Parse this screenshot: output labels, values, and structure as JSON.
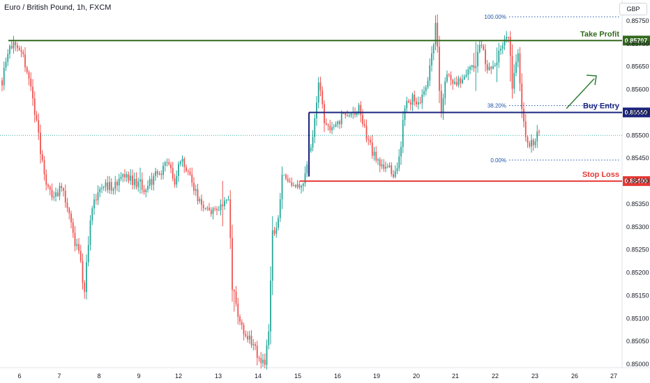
{
  "header": {
    "title": "Euro / British Pound, 1h, FXCM",
    "currency": "GBP"
  },
  "chart_data": {
    "type": "candlestick",
    "title": "Euro / British Pound, 1h, FXCM",
    "ylim": [
      0.84985,
      0.8579
    ],
    "grid": false,
    "y_ticks": [
      "0.85750",
      "0.85700",
      "0.85650",
      "0.85600",
      "0.85550",
      "0.85500",
      "0.85450",
      "0.85400",
      "0.85350",
      "0.85300",
      "0.85250",
      "0.85200",
      "0.85150",
      "0.85100",
      "0.85050",
      "0.85000"
    ],
    "x_ticks": [
      "6",
      "7",
      "8",
      "9",
      "12",
      "13",
      "14",
      "15",
      "16",
      "19",
      "20",
      "21",
      "22",
      "23",
      "26",
      "27"
    ],
    "current_price": 0.855,
    "levels": {
      "take_profit": {
        "label": "Take Profit",
        "price": 0.85707,
        "tag": "0.85707",
        "color": "#33691e"
      },
      "buy_entry": {
        "label": "Buy Entry",
        "price": 0.8555,
        "tag": "0.85550",
        "color": "#1a237e"
      },
      "stop_loss": {
        "label": "Stop Loss",
        "price": 0.854,
        "tag": "0.85400",
        "color": "#e53935"
      }
    },
    "fibonacci": [
      {
        "label": "100.00%",
        "price": 0.85759
      },
      {
        "label": "38.20%",
        "price": 0.85565
      },
      {
        "label": "0.00%",
        "price": 0.85446
      }
    ],
    "colors": {
      "up": "#26a69a",
      "down": "#ef5350",
      "fib": "#1e53a8",
      "arrow": "#2e7d32"
    },
    "price_path": [
      [
        0,
        0.8559
      ],
      [
        7,
        0.8566
      ],
      [
        15,
        0.85705
      ],
      [
        25,
        0.8568
      ],
      [
        35,
        0.85665
      ],
      [
        45,
        0.856
      ],
      [
        55,
        0.855
      ],
      [
        65,
        0.854
      ],
      [
        75,
        0.8537
      ],
      [
        85,
        0.8538
      ],
      [
        95,
        0.8536
      ],
      [
        105,
        0.8528
      ],
      [
        115,
        0.8523
      ],
      [
        121,
        0.8516
      ],
      [
        130,
        0.8532
      ],
      [
        140,
        0.8538
      ],
      [
        150,
        0.8539
      ],
      [
        160,
        0.8539
      ],
      [
        170,
        0.854
      ],
      [
        180,
        0.8541
      ],
      [
        190,
        0.854
      ],
      [
        200,
        0.85395
      ],
      [
        210,
        0.8538
      ],
      [
        220,
        0.8541
      ],
      [
        230,
        0.8542
      ],
      [
        240,
        0.8544
      ],
      [
        250,
        0.854
      ],
      [
        260,
        0.85445
      ],
      [
        268,
        0.8543
      ],
      [
        278,
        0.8538
      ],
      [
        288,
        0.8535
      ],
      [
        298,
        0.8533
      ],
      [
        310,
        0.8534
      ],
      [
        320,
        0.8535
      ],
      [
        328,
        0.8536
      ],
      [
        333,
        0.8517
      ],
      [
        340,
        0.8512
      ],
      [
        350,
        0.8507
      ],
      [
        360,
        0.8505
      ],
      [
        370,
        0.8502
      ],
      [
        380,
        0.85
      ],
      [
        386,
        0.8508
      ],
      [
        390,
        0.8528
      ],
      [
        398,
        0.853
      ],
      [
        405,
        0.8542
      ],
      [
        415,
        0.854
      ],
      [
        425,
        0.8539
      ],
      [
        435,
        0.854
      ],
      [
        442,
        0.8545
      ],
      [
        450,
        0.8552
      ],
      [
        458,
        0.8562
      ],
      [
        465,
        0.8553
      ],
      [
        475,
        0.8552
      ],
      [
        485,
        0.8553
      ],
      [
        495,
        0.8555
      ],
      [
        505,
        0.8554
      ],
      [
        515,
        0.8556
      ],
      [
        525,
        0.855
      ],
      [
        535,
        0.8546
      ],
      [
        545,
        0.8543
      ],
      [
        555,
        0.8544
      ],
      [
        565,
        0.854
      ],
      [
        575,
        0.8548
      ],
      [
        580,
        0.8556
      ],
      [
        590,
        0.8558
      ],
      [
        600,
        0.8557
      ],
      [
        610,
        0.856
      ],
      [
        618,
        0.8566
      ],
      [
        625,
        0.8575
      ],
      [
        632,
        0.8555
      ],
      [
        640,
        0.8563
      ],
      [
        650,
        0.8562
      ],
      [
        660,
        0.8562
      ],
      [
        670,
        0.8564
      ],
      [
        680,
        0.8565
      ],
      [
        690,
        0.857
      ],
      [
        700,
        0.8564
      ],
      [
        710,
        0.8566
      ],
      [
        720,
        0.8569
      ],
      [
        730,
        0.8572
      ],
      [
        735,
        0.856
      ],
      [
        742,
        0.857
      ],
      [
        748,
        0.8556
      ],
      [
        755,
        0.8549
      ],
      [
        762,
        0.8548
      ],
      [
        770,
        0.855
      ],
      [
        775,
        0.855
      ]
    ]
  }
}
